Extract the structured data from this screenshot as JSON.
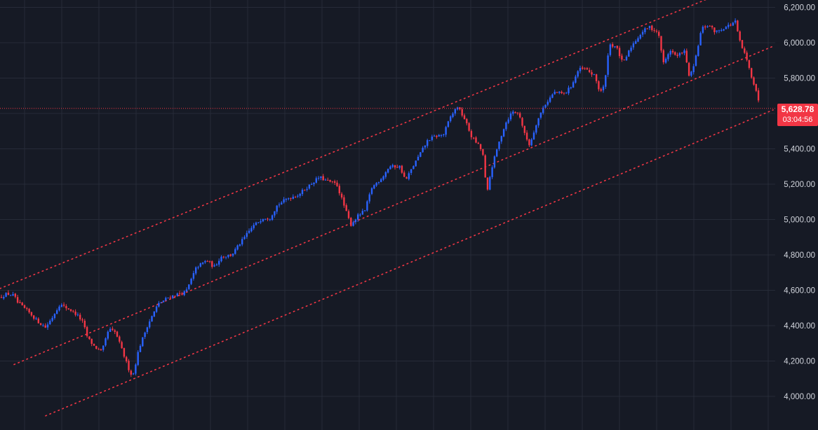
{
  "chart_data": {
    "type": "candlestick",
    "ylim": [
      3900,
      6250
    ],
    "grid": true,
    "y_ticks": [
      {
        "value": 4000,
        "label": "4,000.00"
      },
      {
        "value": 4200,
        "label": "4,200.00"
      },
      {
        "value": 4400,
        "label": "4,400.00"
      },
      {
        "value": 4600,
        "label": "4,600.00"
      },
      {
        "value": 4800,
        "label": "4,800.00"
      },
      {
        "value": 5000,
        "label": "5,000.00"
      },
      {
        "value": 5200,
        "label": "5,200.00"
      },
      {
        "value": 5400,
        "label": "5,400.00"
      },
      {
        "value": 5600,
        "label": "5,600.00"
      },
      {
        "value": 5800,
        "label": "5,800.00"
      },
      {
        "value": 6000,
        "label": "6,000.00"
      },
      {
        "value": 6200,
        "label": "6,200.00"
      }
    ],
    "anchors": [
      [
        0,
        4560
      ],
      [
        10,
        4580
      ],
      [
        20,
        4570
      ],
      [
        25,
        4530
      ],
      [
        40,
        4480
      ],
      [
        55,
        4420
      ],
      [
        65,
        4390
      ],
      [
        75,
        4450
      ],
      [
        85,
        4520
      ],
      [
        100,
        4490
      ],
      [
        110,
        4460
      ],
      [
        118,
        4420
      ],
      [
        125,
        4330
      ],
      [
        135,
        4280
      ],
      [
        145,
        4250
      ],
      [
        155,
        4380
      ],
      [
        165,
        4360
      ],
      [
        175,
        4250
      ],
      [
        183,
        4160
      ],
      [
        189,
        4110
      ],
      [
        198,
        4270
      ],
      [
        210,
        4400
      ],
      [
        225,
        4520
      ],
      [
        240,
        4560
      ],
      [
        255,
        4580
      ],
      [
        265,
        4590
      ],
      [
        280,
        4730
      ],
      [
        295,
        4770
      ],
      [
        305,
        4730
      ],
      [
        315,
        4790
      ],
      [
        330,
        4800
      ],
      [
        345,
        4880
      ],
      [
        360,
        4960
      ],
      [
        375,
        5010
      ],
      [
        385,
        5010
      ],
      [
        395,
        5080
      ],
      [
        410,
        5120
      ],
      [
        425,
        5140
      ],
      [
        440,
        5190
      ],
      [
        455,
        5240
      ],
      [
        465,
        5220
      ],
      [
        480,
        5200
      ],
      [
        492,
        5060
      ],
      [
        500,
        4970
      ],
      [
        510,
        5020
      ],
      [
        520,
        5050
      ],
      [
        530,
        5180
      ],
      [
        545,
        5240
      ],
      [
        555,
        5300
      ],
      [
        570,
        5300
      ],
      [
        578,
        5220
      ],
      [
        590,
        5310
      ],
      [
        600,
        5380
      ],
      [
        610,
        5450
      ],
      [
        620,
        5470
      ],
      [
        632,
        5480
      ],
      [
        642,
        5580
      ],
      [
        652,
        5640
      ],
      [
        662,
        5570
      ],
      [
        672,
        5470
      ],
      [
        682,
        5420
      ],
      [
        688,
        5380
      ],
      [
        694,
        5140
      ],
      [
        700,
        5280
      ],
      [
        710,
        5420
      ],
      [
        720,
        5540
      ],
      [
        730,
        5610
      ],
      [
        740,
        5600
      ],
      [
        748,
        5480
      ],
      [
        755,
        5420
      ],
      [
        765,
        5550
      ],
      [
        775,
        5640
      ],
      [
        790,
        5720
      ],
      [
        805,
        5710
      ],
      [
        815,
        5760
      ],
      [
        825,
        5850
      ],
      [
        835,
        5850
      ],
      [
        848,
        5810
      ],
      [
        855,
        5720
      ],
      [
        862,
        5760
      ],
      [
        868,
        5990
      ],
      [
        878,
        5980
      ],
      [
        888,
        5880
      ],
      [
        900,
        5980
      ],
      [
        915,
        6060
      ],
      [
        925,
        6090
      ],
      [
        938,
        6060
      ],
      [
        946,
        5880
      ],
      [
        955,
        5960
      ],
      [
        965,
        5920
      ],
      [
        975,
        5960
      ],
      [
        983,
        5800
      ],
      [
        990,
        5880
      ],
      [
        1000,
        6080
      ],
      [
        1010,
        6100
      ],
      [
        1020,
        6060
      ],
      [
        1030,
        6080
      ],
      [
        1040,
        6100
      ],
      [
        1048,
        6120
      ],
      [
        1055,
        6000
      ],
      [
        1063,
        5920
      ],
      [
        1072,
        5800
      ],
      [
        1078,
        5730
      ],
      [
        1083,
        5628.78
      ]
    ],
    "channel_lines": [
      [
        [
          0,
          4610
        ],
        [
          1010,
          6250
        ]
      ],
      [
        [
          20,
          4180
        ],
        [
          1102,
          5980
        ]
      ],
      [
        [
          65,
          3890
        ],
        [
          1102,
          5620
        ]
      ]
    ],
    "last_price": 5628.78,
    "colors": {
      "up": "#2962ff",
      "down": "#f23645",
      "grid": "#262b38",
      "channel": "#f23645",
      "background": "#161a25"
    }
  },
  "price_tag": {
    "price": "5,628.78",
    "timer": "03:04:56"
  }
}
